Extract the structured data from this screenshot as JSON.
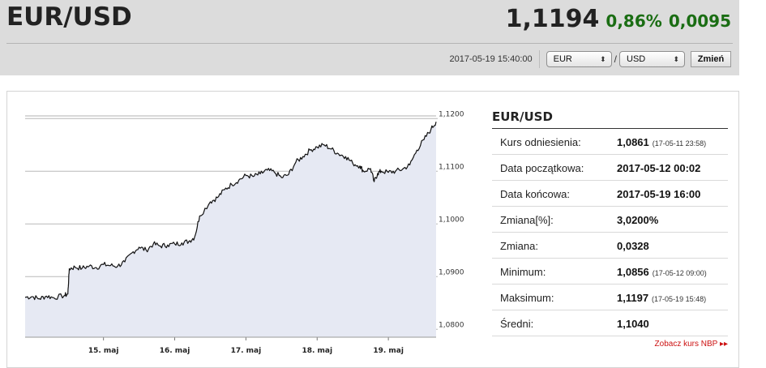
{
  "header": {
    "pair_title": "EUR/USD",
    "rate": "1,1194",
    "change_pct": "0,86%",
    "change_abs": "0,0095",
    "timestamp": "2017-05-19 15:40:00",
    "from_currency": "EUR",
    "to_currency": "USD",
    "separator": "/",
    "change_button": "Zmień",
    "select_arrow": "⬍"
  },
  "colors": {
    "header_bg": "#dcdcdc",
    "positive": "#1a6d13",
    "chart_fill": "#e6e9f3",
    "chart_line": "#111111",
    "link": "#cc1111"
  },
  "chart_data": {
    "type": "area",
    "title": "",
    "xlabel": "",
    "ylabel": "",
    "ylim": [
      1.0785,
      1.1205
    ],
    "y_ticks": [
      "1,1200",
      "1,1100",
      "1,1000",
      "1,0900",
      "1,0800"
    ],
    "x_ticks": [
      "15. maj",
      "16. maj",
      "17. maj",
      "18. maj",
      "19. maj"
    ],
    "x_tick_positions": [
      3.0,
      4.0,
      5.0,
      6.0,
      7.0
    ],
    "x_range": [
      1.9,
      7.67
    ],
    "grid": true,
    "points": [
      [
        1.9,
        1.0861
      ],
      [
        2.0,
        1.0862
      ],
      [
        2.1,
        1.0858
      ],
      [
        2.2,
        1.0863
      ],
      [
        2.3,
        1.086
      ],
      [
        2.45,
        1.0864
      ],
      [
        2.5,
        1.0867
      ],
      [
        2.52,
        1.0915
      ],
      [
        2.6,
        1.0918
      ],
      [
        2.7,
        1.0916
      ],
      [
        2.8,
        1.092
      ],
      [
        2.9,
        1.0917
      ],
      [
        3.0,
        1.0923
      ],
      [
        3.1,
        1.0921
      ],
      [
        3.2,
        1.092
      ],
      [
        3.3,
        1.0928
      ],
      [
        3.4,
        1.0945
      ],
      [
        3.5,
        1.0956
      ],
      [
        3.6,
        1.095
      ],
      [
        3.7,
        1.0962
      ],
      [
        3.8,
        1.0958
      ],
      [
        3.9,
        1.096
      ],
      [
        4.0,
        1.0962
      ],
      [
        4.1,
        1.0964
      ],
      [
        4.2,
        1.0967
      ],
      [
        4.28,
        1.0975
      ],
      [
        4.35,
        1.1015
      ],
      [
        4.5,
        1.1042
      ],
      [
        4.6,
        1.105
      ],
      [
        4.7,
        1.1065
      ],
      [
        4.8,
        1.1075
      ],
      [
        4.9,
        1.1083
      ],
      [
        5.0,
        1.1092
      ],
      [
        5.1,
        1.109
      ],
      [
        5.2,
        1.1095
      ],
      [
        5.3,
        1.1102
      ],
      [
        5.4,
        1.1098
      ],
      [
        5.5,
        1.1088
      ],
      [
        5.6,
        1.1094
      ],
      [
        5.7,
        1.1117
      ],
      [
        5.8,
        1.1128
      ],
      [
        5.9,
        1.114
      ],
      [
        6.0,
        1.1146
      ],
      [
        6.1,
        1.115
      ],
      [
        6.2,
        1.1142
      ],
      [
        6.3,
        1.1133
      ],
      [
        6.4,
        1.1128
      ],
      [
        6.5,
        1.1115
      ],
      [
        6.6,
        1.111
      ],
      [
        6.65,
        1.11
      ],
      [
        6.75,
        1.1105
      ],
      [
        6.8,
        1.108
      ],
      [
        6.85,
        1.1096
      ],
      [
        6.9,
        1.11
      ],
      [
        7.0,
        1.1098
      ],
      [
        7.1,
        1.11
      ],
      [
        7.2,
        1.1104
      ],
      [
        7.3,
        1.1112
      ],
      [
        7.4,
        1.114
      ],
      [
        7.5,
        1.116
      ],
      [
        7.6,
        1.118
      ],
      [
        7.67,
        1.1194
      ]
    ]
  },
  "info": {
    "title": "EUR/USD",
    "rows": [
      {
        "label": "Kurs odniesienia:",
        "value": "1,0861",
        "note": "(17-05-11 23:58)"
      },
      {
        "label": "Data początkowa:",
        "value": "2017-05-12 00:02",
        "note": ""
      },
      {
        "label": "Data końcowa:",
        "value": "2017-05-19 16:00",
        "note": ""
      },
      {
        "label": "Zmiana[%]:",
        "value": "3,0200%",
        "note": ""
      },
      {
        "label": "Zmiana:",
        "value": "0,0328",
        "note": ""
      },
      {
        "label": "Minimum:",
        "value": "1,0856",
        "note": "(17-05-12 09:00)"
      },
      {
        "label": "Maksimum:",
        "value": "1,1197",
        "note": "(17-05-19 15:48)"
      },
      {
        "label": "Średni:",
        "value": "1,1040",
        "note": ""
      }
    ],
    "nbp_link": "Zobacz kurs NBP ▸▸"
  }
}
